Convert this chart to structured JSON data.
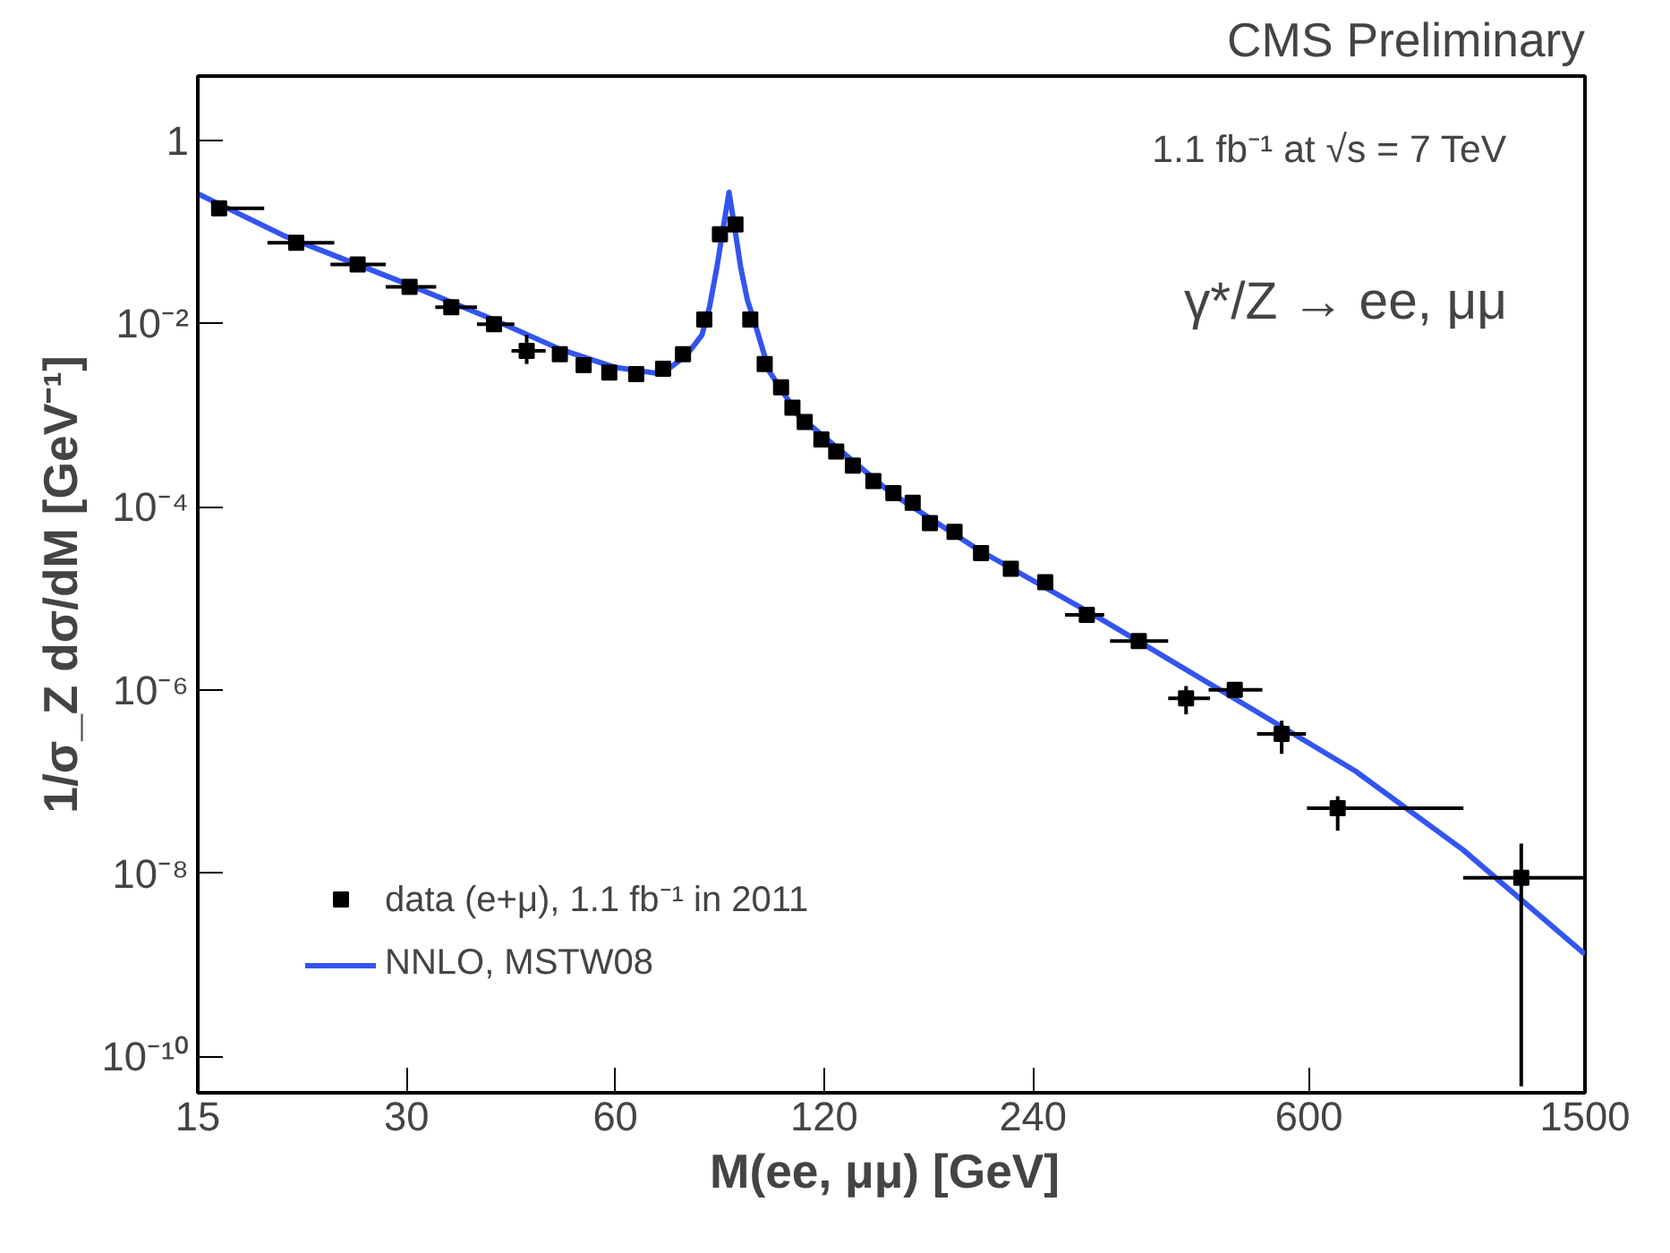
{
  "chart_data": {
    "type": "scatter",
    "title": "CMS Preliminary",
    "xlabel": "M(ee, μμ)  [GeV]",
    "ylabel": "1/σ_Z dσ/dM [GeV⁻¹]",
    "log": "xy",
    "grid": false,
    "legend": "bottom left",
    "xlim": [
      15,
      1500
    ],
    "xticks": [
      15,
      30,
      60,
      120,
      240,
      600,
      1500
    ],
    "ylim": [
      4e-11,
      5
    ],
    "yticks": [
      1,
      {
        "value": 0.01,
        "label": "10⁻²"
      },
      {
        "value": 0.0001,
        "label": "10⁻⁴"
      },
      {
        "value": 1e-06,
        "label": "10⁻⁶"
      },
      {
        "value": 1e-08,
        "label": "10⁻⁸"
      },
      {
        "value": 1e-10,
        "label": "10⁻¹⁰"
      }
    ],
    "annotations": [
      "1.1 fb⁻¹ at √s = 7 TeV",
      "γ*/Z → ee, μμ"
    ],
    "series": [
      {
        "name": "data (e+μ), 1.1 fb⁻¹ in 2011",
        "marker": "square",
        "color": "#000000",
        "x": [
          16.1,
          20.8,
          25.5,
          30.3,
          34.8,
          40.1,
          44.7,
          49.9,
          54.0,
          58.8,
          64.3,
          70.3,
          75.1,
          80.6,
          84.9,
          89.4,
          93.9,
          98.5,
          104,
          108,
          112.5,
          118.9,
          124.9,
          132.0,
          141.3,
          151,
          161,
          170.5,
          185,
          202,
          223,
          250,
          287,
          341,
          399,
          469,
          548,
          660,
          1214
        ],
        "values": [
          0.18,
          0.076,
          0.044,
          0.025,
          0.015,
          0.0098,
          0.005,
          0.0046,
          0.0035,
          0.0029,
          0.0028,
          0.0032,
          0.0046,
          0.011,
          0.094,
          0.12,
          0.011,
          0.0036,
          0.002,
          0.0012,
          0.00084,
          0.00054,
          0.0004,
          0.00028,
          0.00019,
          0.00014,
          0.00011,
          6.6e-05,
          5.3e-05,
          3.1e-05,
          2.1e-05,
          1.5e-05,
          6.6e-06,
          3.4e-06,
          8.1e-07,
          1e-06,
          3.3e-07,
          5.1e-08,
          8.9e-09
        ],
        "xerrors": [
          [
            15.8,
            18.7
          ],
          [
            18.9,
            23.6
          ],
          [
            23.3,
            28.0
          ],
          [
            28.0,
            33.1
          ],
          [
            33.0,
            37.9
          ],
          [
            37.9,
            42.9
          ],
          [
            42.5,
            47.6
          ],
          null,
          null,
          null,
          null,
          null,
          null,
          null,
          null,
          null,
          null,
          null,
          null,
          null,
          null,
          null,
          null,
          null,
          null,
          null,
          null,
          null,
          null,
          null,
          null,
          null,
          [
            267,
            304
          ],
          [
            310,
            376
          ],
          [
            376,
            432
          ],
          [
            430,
            514
          ],
          [
            505,
            594
          ],
          [
            596,
            1002
          ],
          [
            1001,
            1500
          ]
        ],
        "errors": [
          null,
          null,
          null,
          null,
          null,
          null,
          [
            0.0036,
            0.0075
          ],
          null,
          null,
          null,
          null,
          null,
          null,
          null,
          null,
          null,
          null,
          null,
          null,
          null,
          null,
          null,
          null,
          null,
          null,
          null,
          null,
          null,
          null,
          null,
          null,
          null,
          null,
          null,
          [
            5.4e-07,
            1.1e-06
          ],
          null,
          [
            2e-07,
            4.6e-07
          ],
          [
            2.9e-08,
            6.9e-08
          ],
          [
            4.7e-11,
            2.1e-08
          ]
        ]
      },
      {
        "name": "NNLO, MSTW08",
        "type": "line",
        "line_style": "solid",
        "color": "#3355ee",
        "x": [
          15,
          20,
          30,
          40,
          50,
          60,
          70,
          76,
          80,
          82,
          84,
          86,
          87.5,
          89,
          91,
          93,
          95,
          100,
          110,
          150,
          200,
          300,
          500,
          700,
          1000,
          1500
        ],
        "values": [
          0.26,
          0.09,
          0.027,
          0.011,
          0.0052,
          0.0033,
          0.0028,
          0.0045,
          0.0075,
          0.015,
          0.04,
          0.12,
          0.27,
          0.12,
          0.04,
          0.018,
          0.011,
          0.003,
          0.001,
          0.00014,
          3.4e-05,
          6e-06,
          6e-07,
          1.3e-07,
          1.8e-08,
          1.3e-09
        ]
      }
    ]
  }
}
